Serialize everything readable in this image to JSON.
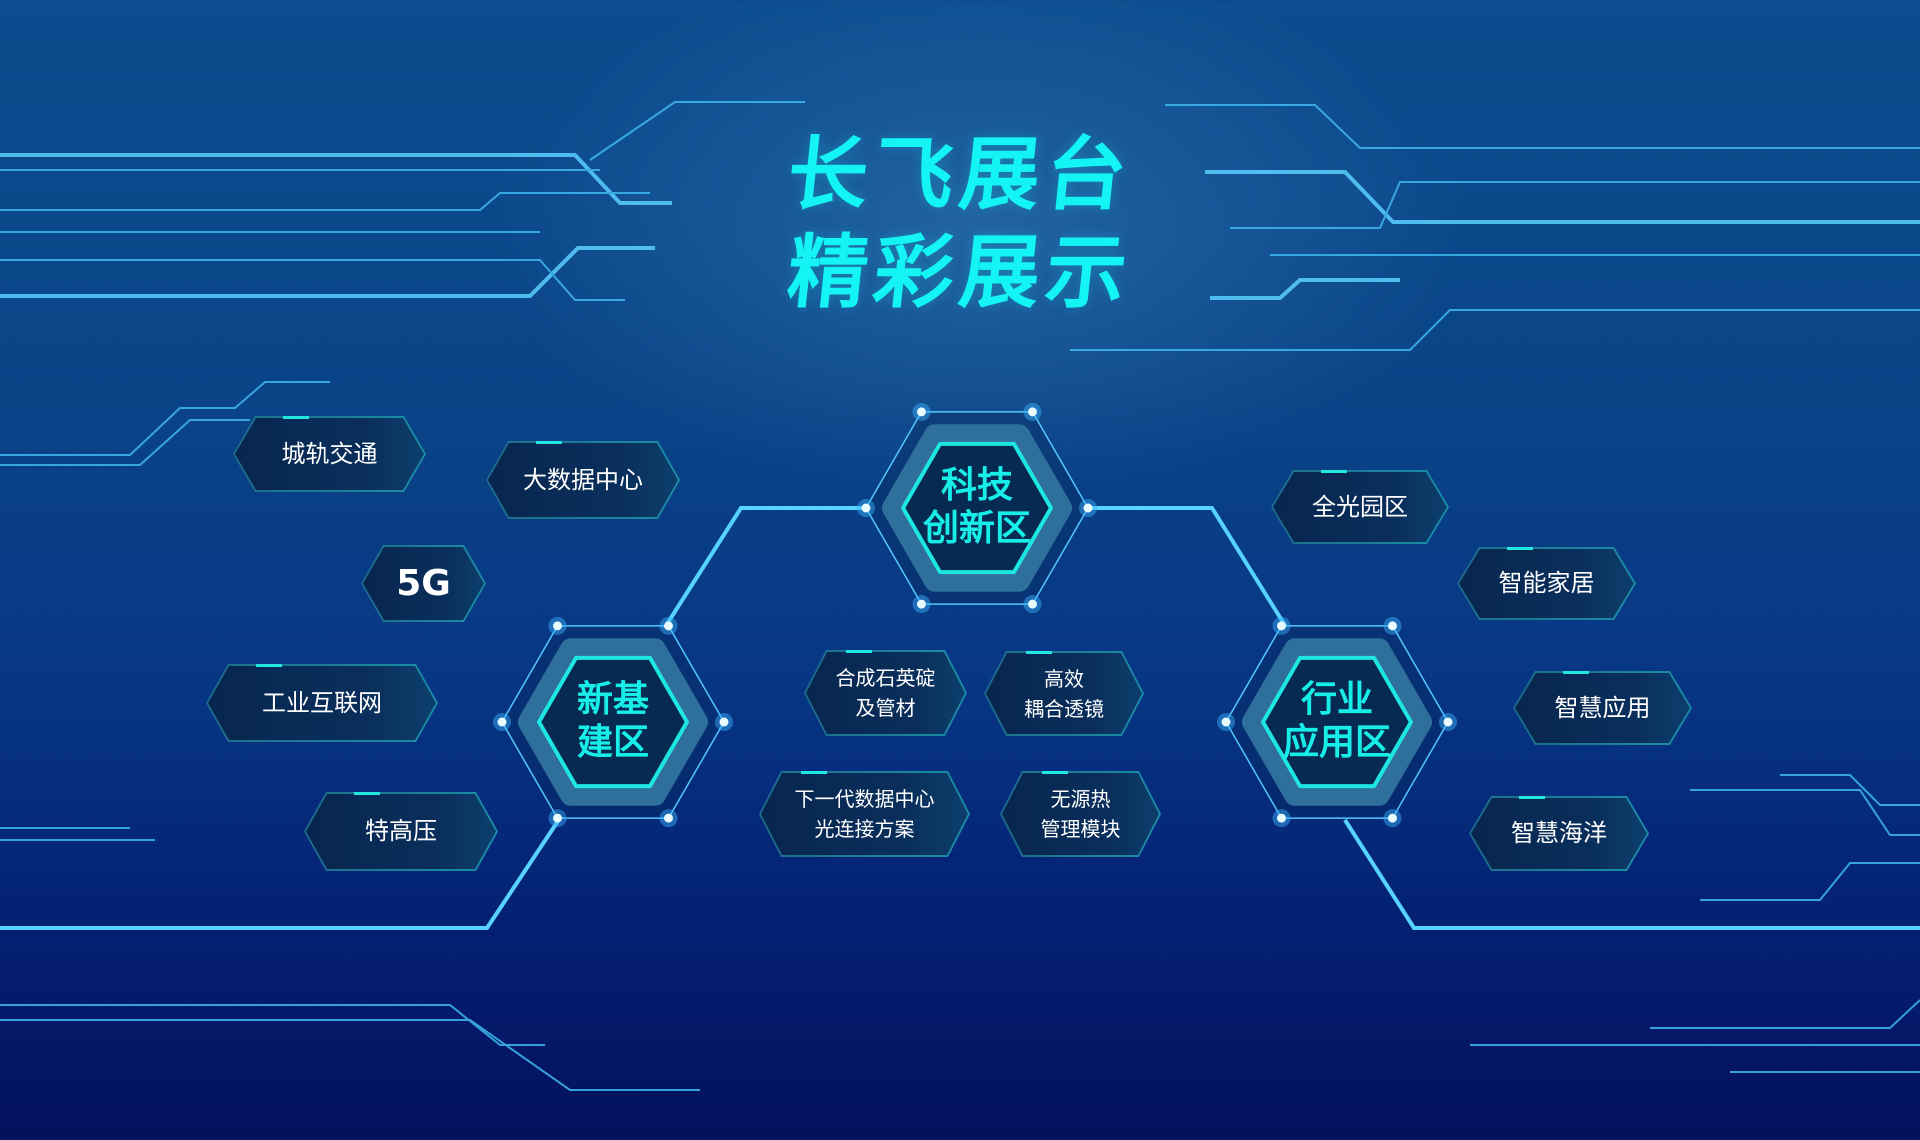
{
  "title": {
    "line1": "长飞展台",
    "line2": "精彩展示"
  },
  "colors": {
    "accent": "#14f4f4",
    "line": "#4fc8f5",
    "bg_top": "#0b4d8e",
    "bg_bottom": "#03115c"
  },
  "hubs": [
    {
      "lines": [
        "科技",
        "创新区"
      ]
    },
    {
      "lines": [
        "新基",
        "建区"
      ]
    },
    {
      "lines": [
        "行业",
        "应用区"
      ]
    }
  ],
  "pills": [
    {
      "lines": [
        "城轨交通"
      ]
    },
    {
      "lines": [
        "大数据中心"
      ]
    },
    {
      "lines": [
        "5G"
      ]
    },
    {
      "lines": [
        "工业互联网"
      ]
    },
    {
      "lines": [
        "特高压"
      ]
    },
    {
      "lines": [
        "合成石英碇",
        "及管材"
      ]
    },
    {
      "lines": [
        "高效",
        "耦合透镜"
      ]
    },
    {
      "lines": [
        "下一代数据中心",
        "光连接方案"
      ]
    },
    {
      "lines": [
        "无源热",
        "管理模块"
      ]
    },
    {
      "lines": [
        "全光园区"
      ]
    },
    {
      "lines": [
        "智能家居"
      ]
    },
    {
      "lines": [
        "智慧应用"
      ]
    },
    {
      "lines": [
        "智慧海洋"
      ]
    }
  ]
}
